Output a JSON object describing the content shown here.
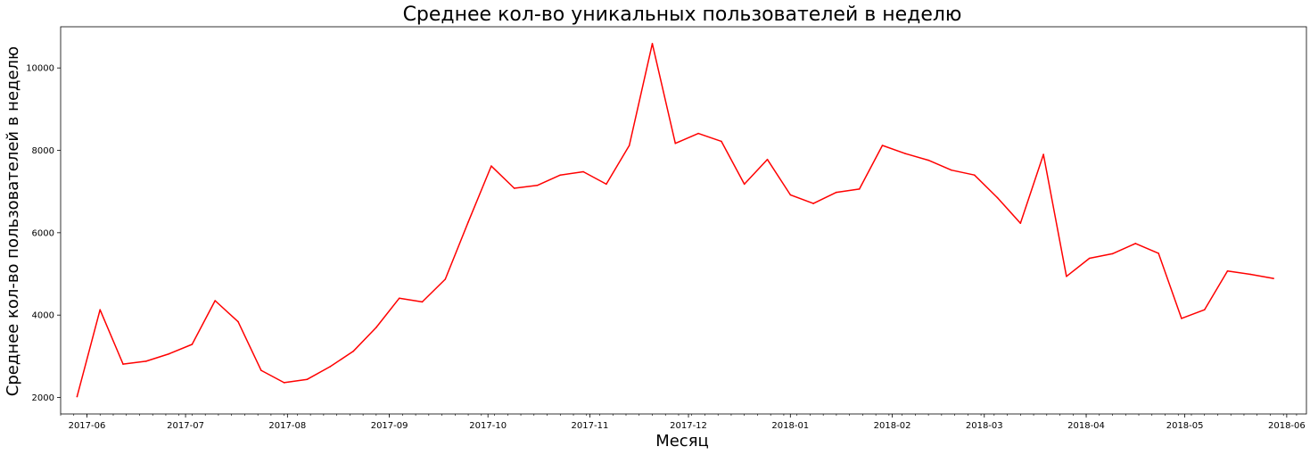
{
  "chart_data": {
    "type": "line",
    "title": "Среднее кол-во уникальных пользователей в неделю",
    "xlabel": "Месяц",
    "ylabel": "Среднее кол-во пользователей в неделю",
    "grid": false,
    "line_color": "#ff0000",
    "x_tick_labels": [
      "2017-06",
      "2017-07",
      "2017-08",
      "2017-09",
      "2017-10",
      "2017-11",
      "2017-12",
      "2018-01",
      "2018-02",
      "2018-03",
      "2018-04",
      "2018-05",
      "2018-06"
    ],
    "y_ticks": [
      2000,
      4000,
      6000,
      8000,
      10000
    ],
    "x_range": [
      "2017-05-24",
      "2018-06-07"
    ],
    "ylim": [
      1600,
      11000
    ],
    "series": [
      {
        "x": [
          "2017-05-29",
          "2017-06-05",
          "2017-06-12",
          "2017-06-19",
          "2017-06-26",
          "2017-07-03",
          "2017-07-10",
          "2017-07-17",
          "2017-07-24",
          "2017-07-31",
          "2017-08-07",
          "2017-08-14",
          "2017-08-21",
          "2017-08-28",
          "2017-09-04",
          "2017-09-11",
          "2017-09-18",
          "2017-09-25",
          "2017-10-02",
          "2017-10-09",
          "2017-10-16",
          "2017-10-23",
          "2017-10-30",
          "2017-11-06",
          "2017-11-13",
          "2017-11-20",
          "2017-11-27",
          "2017-12-04",
          "2017-12-11",
          "2017-12-18",
          "2017-12-25",
          "2018-01-01",
          "2018-01-08",
          "2018-01-15",
          "2018-01-22",
          "2018-01-29",
          "2018-02-05",
          "2018-02-12",
          "2018-02-19",
          "2018-02-26",
          "2018-03-05",
          "2018-03-12",
          "2018-03-19",
          "2018-03-26",
          "2018-04-02",
          "2018-04-09",
          "2018-04-16",
          "2018-04-23",
          "2018-04-30",
          "2018-05-07",
          "2018-05-14",
          "2018-05-21",
          "2018-05-28"
        ],
        "y": [
          2020,
          4130,
          2810,
          2880,
          3060,
          3290,
          4350,
          3840,
          2660,
          2360,
          2440,
          2750,
          3120,
          3700,
          4410,
          4320,
          4870,
          6260,
          7620,
          7080,
          7150,
          7400,
          7480,
          7180,
          8120,
          10590,
          8170,
          8410,
          8220,
          7180,
          7780,
          6920,
          6710,
          6980,
          7060,
          8120,
          7920,
          7760,
          7520,
          7400,
          6850,
          6230,
          7900,
          4940,
          5380,
          5490,
          5740,
          5500,
          3920,
          4130,
          5070,
          4990,
          4890
        ]
      }
    ]
  }
}
